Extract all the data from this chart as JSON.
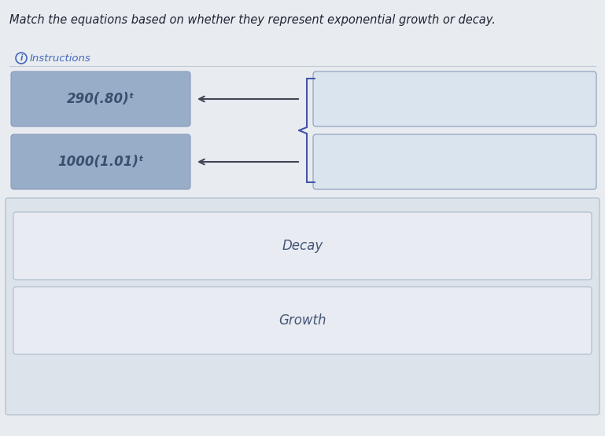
{
  "title": "Match the equations based on whether they represent exponential growth or decay.",
  "instructions_label": "Instructions",
  "eq1": "290(.80)ᵗ",
  "eq2": "1000(1.01)ᵗ",
  "label1": "Decay",
  "label2": "Growth",
  "bg_color": "#e8ecf0",
  "box_eq_color": "#98aec8",
  "box_right_color": "#dae4ee",
  "box_bottom_outer_color": "#dde3ea",
  "box_bottom_inner_color": "#e8ecf2",
  "arrow_color": "#444455",
  "brace_color": "#4455aa",
  "text_eq_color": "#3a4f6e",
  "text_label_color": "#445577",
  "title_color": "#222233",
  "instr_color": "#4466bb",
  "instr_circle_color": "#4466bb",
  "title_fontsize": 10.5,
  "eq_fontsize": 12,
  "label_fontsize": 12,
  "instr_fontsize": 9.5,
  "fig_width": 7.69,
  "fig_height": 5.55,
  "dpi": 100
}
